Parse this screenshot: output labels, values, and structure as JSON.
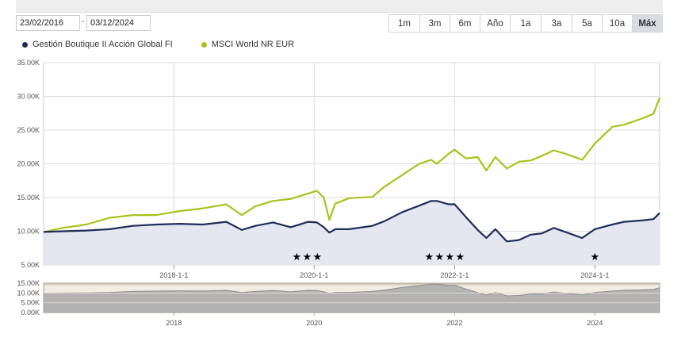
{
  "toolbar": {
    "start_date": "23/02/2016",
    "separator": "-",
    "end_date": "03/12/2024",
    "ranges": [
      "1m",
      "3m",
      "6m",
      "Año",
      "1a",
      "3a",
      "5a",
      "10a",
      "Máx"
    ],
    "active_range": "Máx"
  },
  "colors": {
    "fund": "#1e2c5a",
    "benchmark": "#a9c21d",
    "fund_area": "#e4e7f0",
    "navigator_fill": "#b3b3b3",
    "navigator_bg": "#f3ece3"
  },
  "chart_data": {
    "type": "line",
    "x_start": "2016-02-23",
    "x_end": "2024-12-03",
    "ylim": [
      5000,
      35000
    ],
    "y_ticks": [
      "35.00K",
      "30.00K",
      "25.00K",
      "20.00K",
      "15.00K",
      "10.00K",
      "5.00K"
    ],
    "x_ticks": [
      "2018-1-1",
      "2020-1-1",
      "2022-1-1",
      "2024-1-1"
    ],
    "legend_position": "top-left",
    "grid": true,
    "series": [
      {
        "name": "Gestión Boutique II Acción Global FI",
        "x": [
          "2016-02-23",
          "2016-06-01",
          "2016-10-01",
          "2017-02-01",
          "2017-06-01",
          "2017-10-01",
          "2018-02-01",
          "2018-06-01",
          "2018-10-01",
          "2018-12-20",
          "2019-03-01",
          "2019-06-01",
          "2019-09-01",
          "2019-12-01",
          "2020-01-15",
          "2020-02-20",
          "2020-03-20",
          "2020-04-20",
          "2020-07-01",
          "2020-10-30",
          "2021-01-01",
          "2021-04-01",
          "2021-07-01",
          "2021-09-01",
          "2021-10-01",
          "2021-12-01",
          "2022-01-01",
          "2022-03-01",
          "2022-05-01",
          "2022-06-15",
          "2022-08-01",
          "2022-09-30",
          "2022-12-01",
          "2023-02-01",
          "2023-04-01",
          "2023-06-01",
          "2023-08-01",
          "2023-10-27",
          "2024-01-01",
          "2024-04-01",
          "2024-06-01",
          "2024-09-01",
          "2024-11-01",
          "2024-12-03"
        ],
        "values": [
          9900,
          10000,
          10100,
          10300,
          10800,
          11000,
          11100,
          11000,
          11400,
          10200,
          10800,
          11300,
          10600,
          11400,
          11300,
          10600,
          9800,
          10300,
          10300,
          10800,
          11500,
          12800,
          13800,
          14500,
          14500,
          14000,
          14000,
          12100,
          10200,
          9000,
          10300,
          8500,
          8700,
          9500,
          9700,
          10500,
          9900,
          9000,
          10300,
          11000,
          11400,
          11600,
          11800,
          12700
        ]
      },
      {
        "name": "MSCI World NR EUR",
        "x": [
          "2016-02-23",
          "2016-06-01",
          "2016-10-01",
          "2017-02-01",
          "2017-06-01",
          "2017-10-01",
          "2018-02-01",
          "2018-06-01",
          "2018-10-01",
          "2018-12-20",
          "2019-03-01",
          "2019-06-01",
          "2019-09-01",
          "2019-12-01",
          "2020-01-15",
          "2020-02-20",
          "2020-03-20",
          "2020-04-20",
          "2020-07-01",
          "2020-10-30",
          "2021-01-01",
          "2021-04-01",
          "2021-07-01",
          "2021-09-01",
          "2021-10-01",
          "2021-12-01",
          "2022-01-01",
          "2022-03-01",
          "2022-05-01",
          "2022-06-15",
          "2022-08-01",
          "2022-09-30",
          "2022-12-01",
          "2023-02-01",
          "2023-04-01",
          "2023-06-01",
          "2023-08-01",
          "2023-10-27",
          "2024-01-01",
          "2024-04-01",
          "2024-06-01",
          "2024-09-01",
          "2024-11-01",
          "2024-12-03"
        ],
        "values": [
          9900,
          10500,
          11000,
          12000,
          12400,
          12400,
          13000,
          13400,
          14000,
          12400,
          13700,
          14500,
          14800,
          15600,
          16000,
          15000,
          11700,
          14100,
          14900,
          15100,
          16600,
          18300,
          20000,
          20600,
          20000,
          21500,
          22100,
          20800,
          21000,
          19000,
          21000,
          19300,
          20300,
          20500,
          21200,
          22000,
          21500,
          20600,
          23000,
          25500,
          25800,
          26700,
          27400,
          29800
        ]
      }
    ]
  },
  "ratings": {
    "label": "★",
    "groups": [
      {
        "x": "2019-11-25",
        "count": 3
      },
      {
        "x": "2021-11-10",
        "count": 4
      },
      {
        "x": "2024-01-01",
        "count": 1
      }
    ]
  },
  "navigator": {
    "y_ticks": [
      "15.00K",
      "10.00K",
      "5.00K",
      "0.00K"
    ],
    "ylim": [
      0,
      15000
    ],
    "x_ticks": [
      "2018",
      "2020",
      "2022",
      "2024"
    ]
  }
}
